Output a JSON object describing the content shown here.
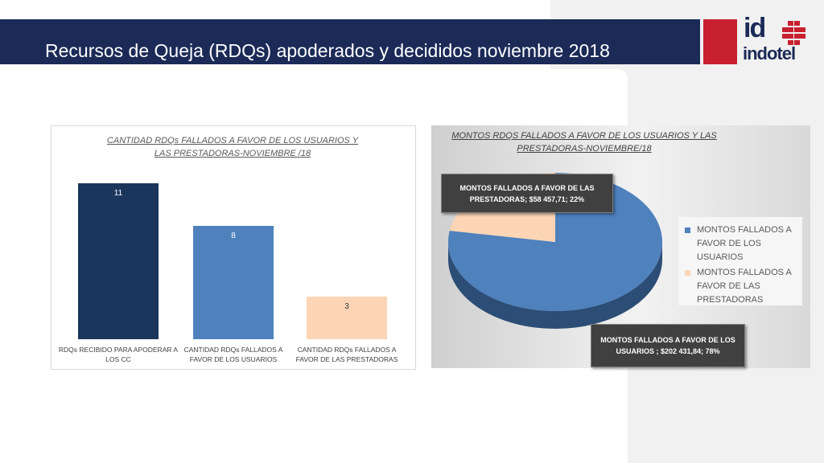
{
  "slide": {
    "title": "Recursos de Queja (RDQs) apoderados y decididos  noviembre 2018"
  },
  "logo": {
    "mark": "id",
    "wordmark": "indotel"
  },
  "colors": {
    "title_bar": "#1b2a57",
    "bar_1": "#1b365d",
    "bar_2": "#4f81bd",
    "bar_3": "#fbd5b5",
    "pie_usuarios": "#4f81bd",
    "pie_prestadoras": "#fbd5b5",
    "logo_red": "#c8202f"
  },
  "chart_data": [
    {
      "type": "bar",
      "title": "CANTIDAD RDQs FALLADOS A FAVOR DE LOS USUARIOS Y LAS PRESTADORAS-NOVIEMBRE /18",
      "categories": [
        "RDQs RECIBIDO PARA APODERAR A LOS CC",
        "CANTIDAD RDQs FALLADOS A FAVOR DE LOS USUARIOS",
        "CANTIDAD RDQs FALLADOS A FAVOR DE LAS PRESTADORAS"
      ],
      "values": [
        11,
        8,
        3
      ],
      "data_labels": [
        "11",
        "8",
        "3"
      ],
      "ylim": [
        0,
        11
      ],
      "grid": false,
      "legend": false
    },
    {
      "type": "pie",
      "title": "MONTOS RDQS FALLADOS A FAVOR DE LOS  USUARIOS Y LAS PRESTADORAS-NOVIEMBRE/18",
      "slices": [
        {
          "name": "MONTOS  FALLADOS A FAVOR DE LOS USUARIOS",
          "value": 202431.84,
          "percent": 78,
          "data_label": "MONTOS  FALLADOS A FAVOR DE LOS USUARIOS ; $202 431,84; 78%"
        },
        {
          "name": "MONTOS FALLADOS  A FAVOR DE LAS PRESTADORAS",
          "value": 58457.71,
          "percent": 22,
          "data_label": "MONTOS FALLADOS  A FAVOR DE LAS PRESTADORAS; $58 457,71; 22%"
        }
      ],
      "legend": "right",
      "style": "3d"
    }
  ]
}
